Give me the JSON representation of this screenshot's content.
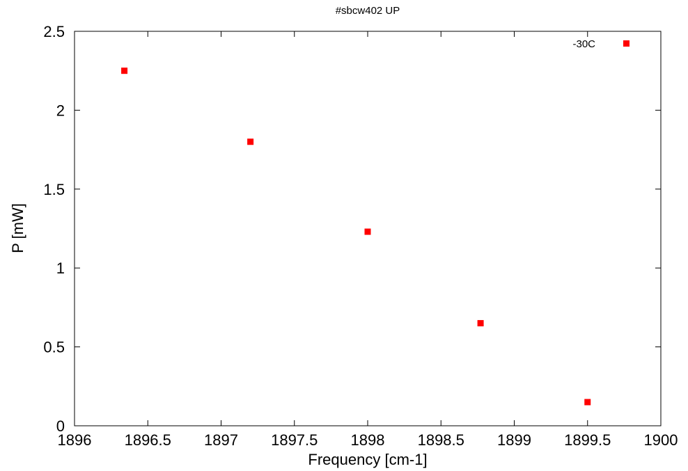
{
  "chart_data": {
    "type": "scatter",
    "title": "#sbcw402 UP",
    "xlabel": "Frequency [cm-1]",
    "ylabel": "P [mW]",
    "xlim": [
      1896,
      1900
    ],
    "ylim": [
      0,
      2.5
    ],
    "xticks": [
      "1896",
      "1896.5",
      "1897",
      "1897.5",
      "1898",
      "1898.5",
      "1899",
      "1899.5",
      "1900"
    ],
    "yticks": [
      "0",
      "0.5",
      "1",
      "1.5",
      "2",
      "2.5"
    ],
    "grid": false,
    "legend_position": "top-right",
    "series": [
      {
        "name": "-30C",
        "color": "#ff0000",
        "marker": "square",
        "x": [
          1896.34,
          1897.2,
          1898.0,
          1898.77,
          1899.5
        ],
        "y": [
          2.25,
          1.8,
          1.23,
          0.65,
          0.15
        ]
      }
    ]
  }
}
